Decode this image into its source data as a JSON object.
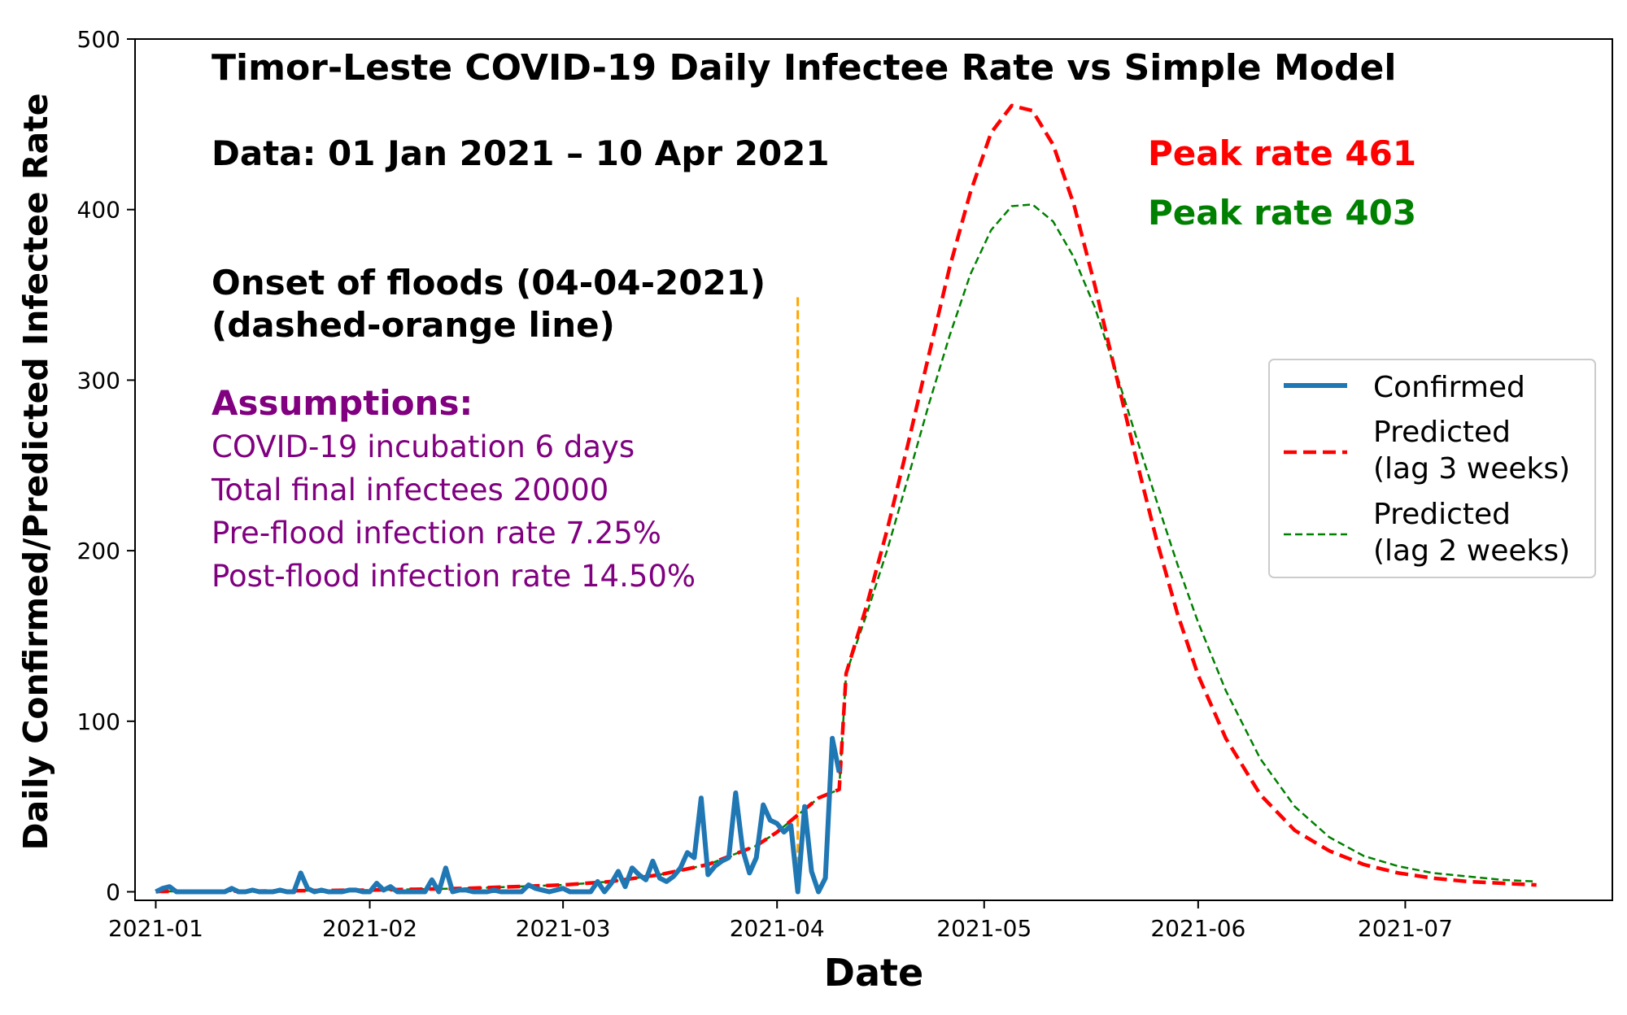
{
  "chart_data": {
    "type": "line",
    "title": "Timor-Leste COVID-19 Daily Infectee Rate vs Simple Model",
    "data_range_note": "Data: 01 Jan 2021 – 10 Apr 2021",
    "xlabel": "Date",
    "ylabel": "Daily Confirmed/Predicted Infectee Rate",
    "xlim": [
      "2020-12-29",
      "2021-07-31"
    ],
    "ylim": [
      -5,
      500
    ],
    "x_ticks": [
      "2021-01-01",
      "2021-02-01",
      "2021-03-01",
      "2021-04-01",
      "2021-05-01",
      "2021-06-01",
      "2021-07-01"
    ],
    "x_tick_labels": [
      "2021-01",
      "2021-02",
      "2021-03",
      "2021-04",
      "2021-05",
      "2021-06",
      "2021-07"
    ],
    "y_ticks": [
      0,
      100,
      200,
      300,
      400,
      500
    ],
    "y_tick_labels": [
      "0",
      "100",
      "200",
      "300",
      "400",
      "500"
    ],
    "grid": false,
    "legend_position": "center-right",
    "series": [
      {
        "name": "Confirmed",
        "color": "#1f77b4",
        "style": "solid",
        "x": [
          "2021-01-01",
          "2021-01-02",
          "2021-01-03",
          "2021-01-04",
          "2021-01-05",
          "2021-01-06",
          "2021-01-07",
          "2021-01-08",
          "2021-01-09",
          "2021-01-10",
          "2021-01-11",
          "2021-01-12",
          "2021-01-13",
          "2021-01-14",
          "2021-01-15",
          "2021-01-16",
          "2021-01-17",
          "2021-01-18",
          "2021-01-19",
          "2021-01-20",
          "2021-01-21",
          "2021-01-22",
          "2021-01-23",
          "2021-01-24",
          "2021-01-25",
          "2021-01-26",
          "2021-01-27",
          "2021-01-28",
          "2021-01-29",
          "2021-01-30",
          "2021-01-31",
          "2021-02-01",
          "2021-02-02",
          "2021-02-03",
          "2021-02-04",
          "2021-02-05",
          "2021-02-06",
          "2021-02-07",
          "2021-02-08",
          "2021-02-09",
          "2021-02-10",
          "2021-02-11",
          "2021-02-12",
          "2021-02-13",
          "2021-02-14",
          "2021-02-15",
          "2021-02-16",
          "2021-02-17",
          "2021-02-18",
          "2021-02-19",
          "2021-02-20",
          "2021-02-21",
          "2021-02-22",
          "2021-02-23",
          "2021-02-24",
          "2021-02-25",
          "2021-02-26",
          "2021-02-27",
          "2021-02-28",
          "2021-03-01",
          "2021-03-02",
          "2021-03-03",
          "2021-03-04",
          "2021-03-05",
          "2021-03-06",
          "2021-03-07",
          "2021-03-08",
          "2021-03-09",
          "2021-03-10",
          "2021-03-11",
          "2021-03-12",
          "2021-03-13",
          "2021-03-14",
          "2021-03-15",
          "2021-03-16",
          "2021-03-17",
          "2021-03-18",
          "2021-03-19",
          "2021-03-20",
          "2021-03-21",
          "2021-03-22",
          "2021-03-23",
          "2021-03-24",
          "2021-03-25",
          "2021-03-26",
          "2021-03-27",
          "2021-03-28",
          "2021-03-29",
          "2021-03-30",
          "2021-03-31",
          "2021-04-01",
          "2021-04-02",
          "2021-04-03",
          "2021-04-04",
          "2021-04-05",
          "2021-04-06",
          "2021-04-07",
          "2021-04-08",
          "2021-04-09",
          "2021-04-10"
        ],
        "y": [
          0,
          2,
          3,
          0,
          0,
          0,
          0,
          0,
          0,
          0,
          0,
          2,
          0,
          0,
          1,
          0,
          0,
          0,
          1,
          0,
          0,
          11,
          2,
          0,
          1,
          0,
          0,
          0,
          1,
          1,
          0,
          0,
          5,
          1,
          3,
          0,
          0,
          0,
          0,
          0,
          7,
          0,
          14,
          0,
          1,
          1,
          0,
          0,
          0,
          1,
          0,
          0,
          0,
          0,
          4,
          2,
          1,
          0,
          1,
          2,
          0,
          0,
          0,
          0,
          6,
          0,
          5,
          12,
          3,
          14,
          10,
          7,
          18,
          8,
          6,
          9,
          14,
          23,
          20,
          55,
          10,
          15,
          18,
          20,
          58,
          25,
          11,
          20,
          51,
          42,
          40,
          35,
          39,
          0,
          50,
          12,
          0,
          8,
          90,
          70
        ]
      },
      {
        "name": "Predicted\n(lag 3 weeks)",
        "color": "#ff0000",
        "style": "dashed",
        "x": [
          "2021-01-01",
          "2021-01-15",
          "2021-02-01",
          "2021-02-15",
          "2021-03-01",
          "2021-03-08",
          "2021-03-15",
          "2021-03-22",
          "2021-03-29",
          "2021-04-01",
          "2021-04-04",
          "2021-04-07",
          "2021-04-10",
          "2021-04-11",
          "2021-04-14",
          "2021-04-17",
          "2021-04-20",
          "2021-04-23",
          "2021-04-26",
          "2021-04-29",
          "2021-05-02",
          "2021-05-05",
          "2021-05-08",
          "2021-05-11",
          "2021-05-14",
          "2021-05-17",
          "2021-05-20",
          "2021-05-23",
          "2021-05-26",
          "2021-05-29",
          "2021-06-01",
          "2021-06-05",
          "2021-06-10",
          "2021-06-15",
          "2021-06-20",
          "2021-06-25",
          "2021-06-30",
          "2021-07-05",
          "2021-07-10",
          "2021-07-15",
          "2021-07-20"
        ],
        "y": [
          0.2,
          0.4,
          1,
          2,
          4,
          6,
          10,
          16,
          27,
          35,
          45,
          55,
          60,
          128,
          168,
          213,
          263,
          315,
          366,
          410,
          445,
          461,
          458,
          438,
          403,
          356,
          305,
          254,
          206,
          163,
          127,
          90,
          57,
          36,
          24,
          16,
          11,
          8,
          6,
          5,
          4
        ]
      },
      {
        "name": "Predicted\n(lag 2 weeks)",
        "color": "#008000",
        "style": "dashed",
        "x": [
          "2021-01-01",
          "2021-01-15",
          "2021-02-01",
          "2021-02-15",
          "2021-03-01",
          "2021-03-08",
          "2021-03-15",
          "2021-03-22",
          "2021-03-29",
          "2021-04-01",
          "2021-04-04",
          "2021-04-07",
          "2021-04-10",
          "2021-04-11",
          "2021-04-14",
          "2021-04-17",
          "2021-04-20",
          "2021-04-23",
          "2021-04-26",
          "2021-04-29",
          "2021-05-02",
          "2021-05-05",
          "2021-05-08",
          "2021-05-11",
          "2021-05-14",
          "2021-05-17",
          "2021-05-20",
          "2021-05-23",
          "2021-05-26",
          "2021-05-29",
          "2021-06-01",
          "2021-06-05",
          "2021-06-10",
          "2021-06-15",
          "2021-06-20",
          "2021-06-25",
          "2021-06-30",
          "2021-07-05",
          "2021-07-10",
          "2021-07-15",
          "2021-07-20"
        ],
        "y": [
          0.2,
          0.4,
          1,
          2,
          4,
          6,
          10,
          16,
          27,
          35,
          45,
          55,
          60,
          128,
          163,
          201,
          243,
          286,
          326,
          362,
          388,
          402,
          403,
          393,
          372,
          343,
          306,
          267,
          229,
          192,
          158,
          118,
          78,
          50,
          32,
          21,
          15,
          11,
          9,
          7,
          6
        ]
      }
    ],
    "vertical_line": {
      "x": "2021-04-04",
      "y_top": 350,
      "color": "#ffa500",
      "style": "dashed"
    },
    "annotations": {
      "peak_red": "Peak rate 461",
      "peak_green": "Peak rate 403",
      "flood_line1": "Onset of floods (04-04-2021)",
      "flood_line2": "(dashed-orange line)",
      "assumptions_heading": "Assumptions:",
      "assumption_items": [
        "COVID-19 incubation 6 days",
        "Total final infectees 20000",
        "Pre-flood infection rate 7.25%",
        "Post-flood infection rate 14.50%"
      ],
      "assumptions_color": "#800080"
    }
  }
}
